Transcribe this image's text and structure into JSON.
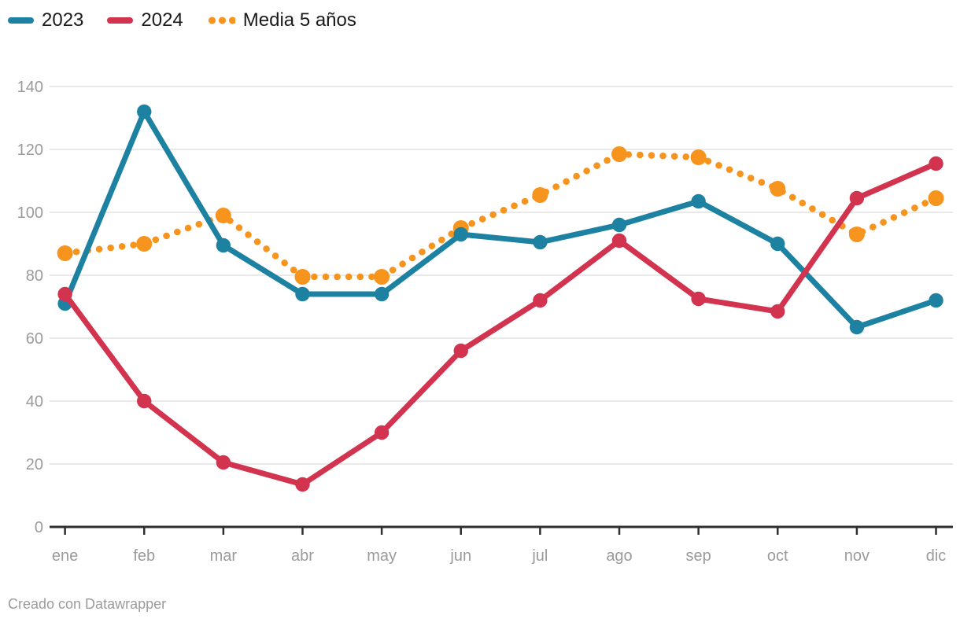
{
  "legend": {
    "items": [
      {
        "label": "2023",
        "color": "#1d81a2",
        "style": "solid"
      },
      {
        "label": "2024",
        "color": "#d2334f",
        "style": "solid"
      },
      {
        "label": "Media 5 años",
        "color": "#f7941e",
        "style": "dotted"
      }
    ]
  },
  "footer": {
    "credit": "Creado con Datawrapper"
  },
  "colors": {
    "background": "#ffffff",
    "grid": "#e9e9e9",
    "axis": "#2f2f2f",
    "tick_label": "#9b9b9b",
    "legend_text": "#1a1a1a"
  },
  "chart_data": {
    "type": "line",
    "title": "",
    "xlabel": "",
    "ylabel": "",
    "categories": [
      "ene",
      "feb",
      "mar",
      "abr",
      "may",
      "jun",
      "jul",
      "ago",
      "sep",
      "oct",
      "nov",
      "dic"
    ],
    "series": [
      {
        "name": "2023",
        "color": "#1d81a2",
        "style": "solid",
        "values": [
          71,
          132,
          89.5,
          74,
          74,
          93,
          90.5,
          96,
          103.5,
          90,
          63.5,
          72
        ]
      },
      {
        "name": "2024",
        "color": "#d2334f",
        "style": "solid",
        "values": [
          74,
          40,
          20.5,
          13.5,
          30,
          56,
          72,
          91,
          72.5,
          68.5,
          104.5,
          115.5
        ]
      },
      {
        "name": "Media 5 años",
        "color": "#f7941e",
        "style": "dotted",
        "values": [
          87,
          90,
          99,
          79.5,
          79.5,
          95,
          105.5,
          118.5,
          117.5,
          107.5,
          93,
          104.5
        ]
      }
    ],
    "ylim": [
      0,
      140
    ],
    "yticks": [
      0,
      20,
      40,
      60,
      80,
      100,
      120,
      140
    ],
    "grid": "horizontal",
    "legend_position": "top-left"
  }
}
